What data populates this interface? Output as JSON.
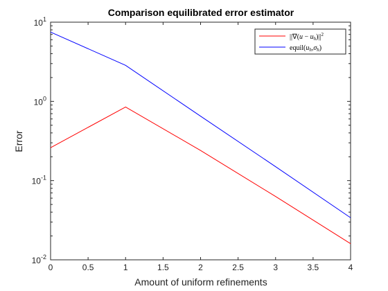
{
  "chart_data": {
    "type": "line",
    "title": "Comparison equilibrated error estimator",
    "xlabel": "Amount of uniform refinements",
    "ylabel": "Error",
    "x": [
      0,
      1,
      2,
      3,
      4
    ],
    "xlim": [
      0,
      4
    ],
    "xticks": [
      "0",
      "0.5",
      "1",
      "1.5",
      "2",
      "2.5",
      "3",
      "3.5",
      "4"
    ],
    "ylim": [
      0.01,
      10
    ],
    "yscale": "log",
    "yticks": [
      {
        "base": "10",
        "exp": "-2"
      },
      {
        "base": "10",
        "exp": "-1"
      },
      {
        "base": "10",
        "exp": "0"
      },
      {
        "base": "10",
        "exp": "1"
      }
    ],
    "grid": false,
    "legend_position": "top-right",
    "series": [
      {
        "name": "||∇(u − u_h)||²",
        "color": "#ff0000",
        "values": [
          0.26,
          0.85,
          0.24,
          0.063,
          0.016
        ]
      },
      {
        "name": "equil(u_h, σ_h)",
        "color": "#0000ff",
        "values": [
          7.5,
          2.85,
          0.65,
          0.15,
          0.034
        ]
      }
    ]
  }
}
